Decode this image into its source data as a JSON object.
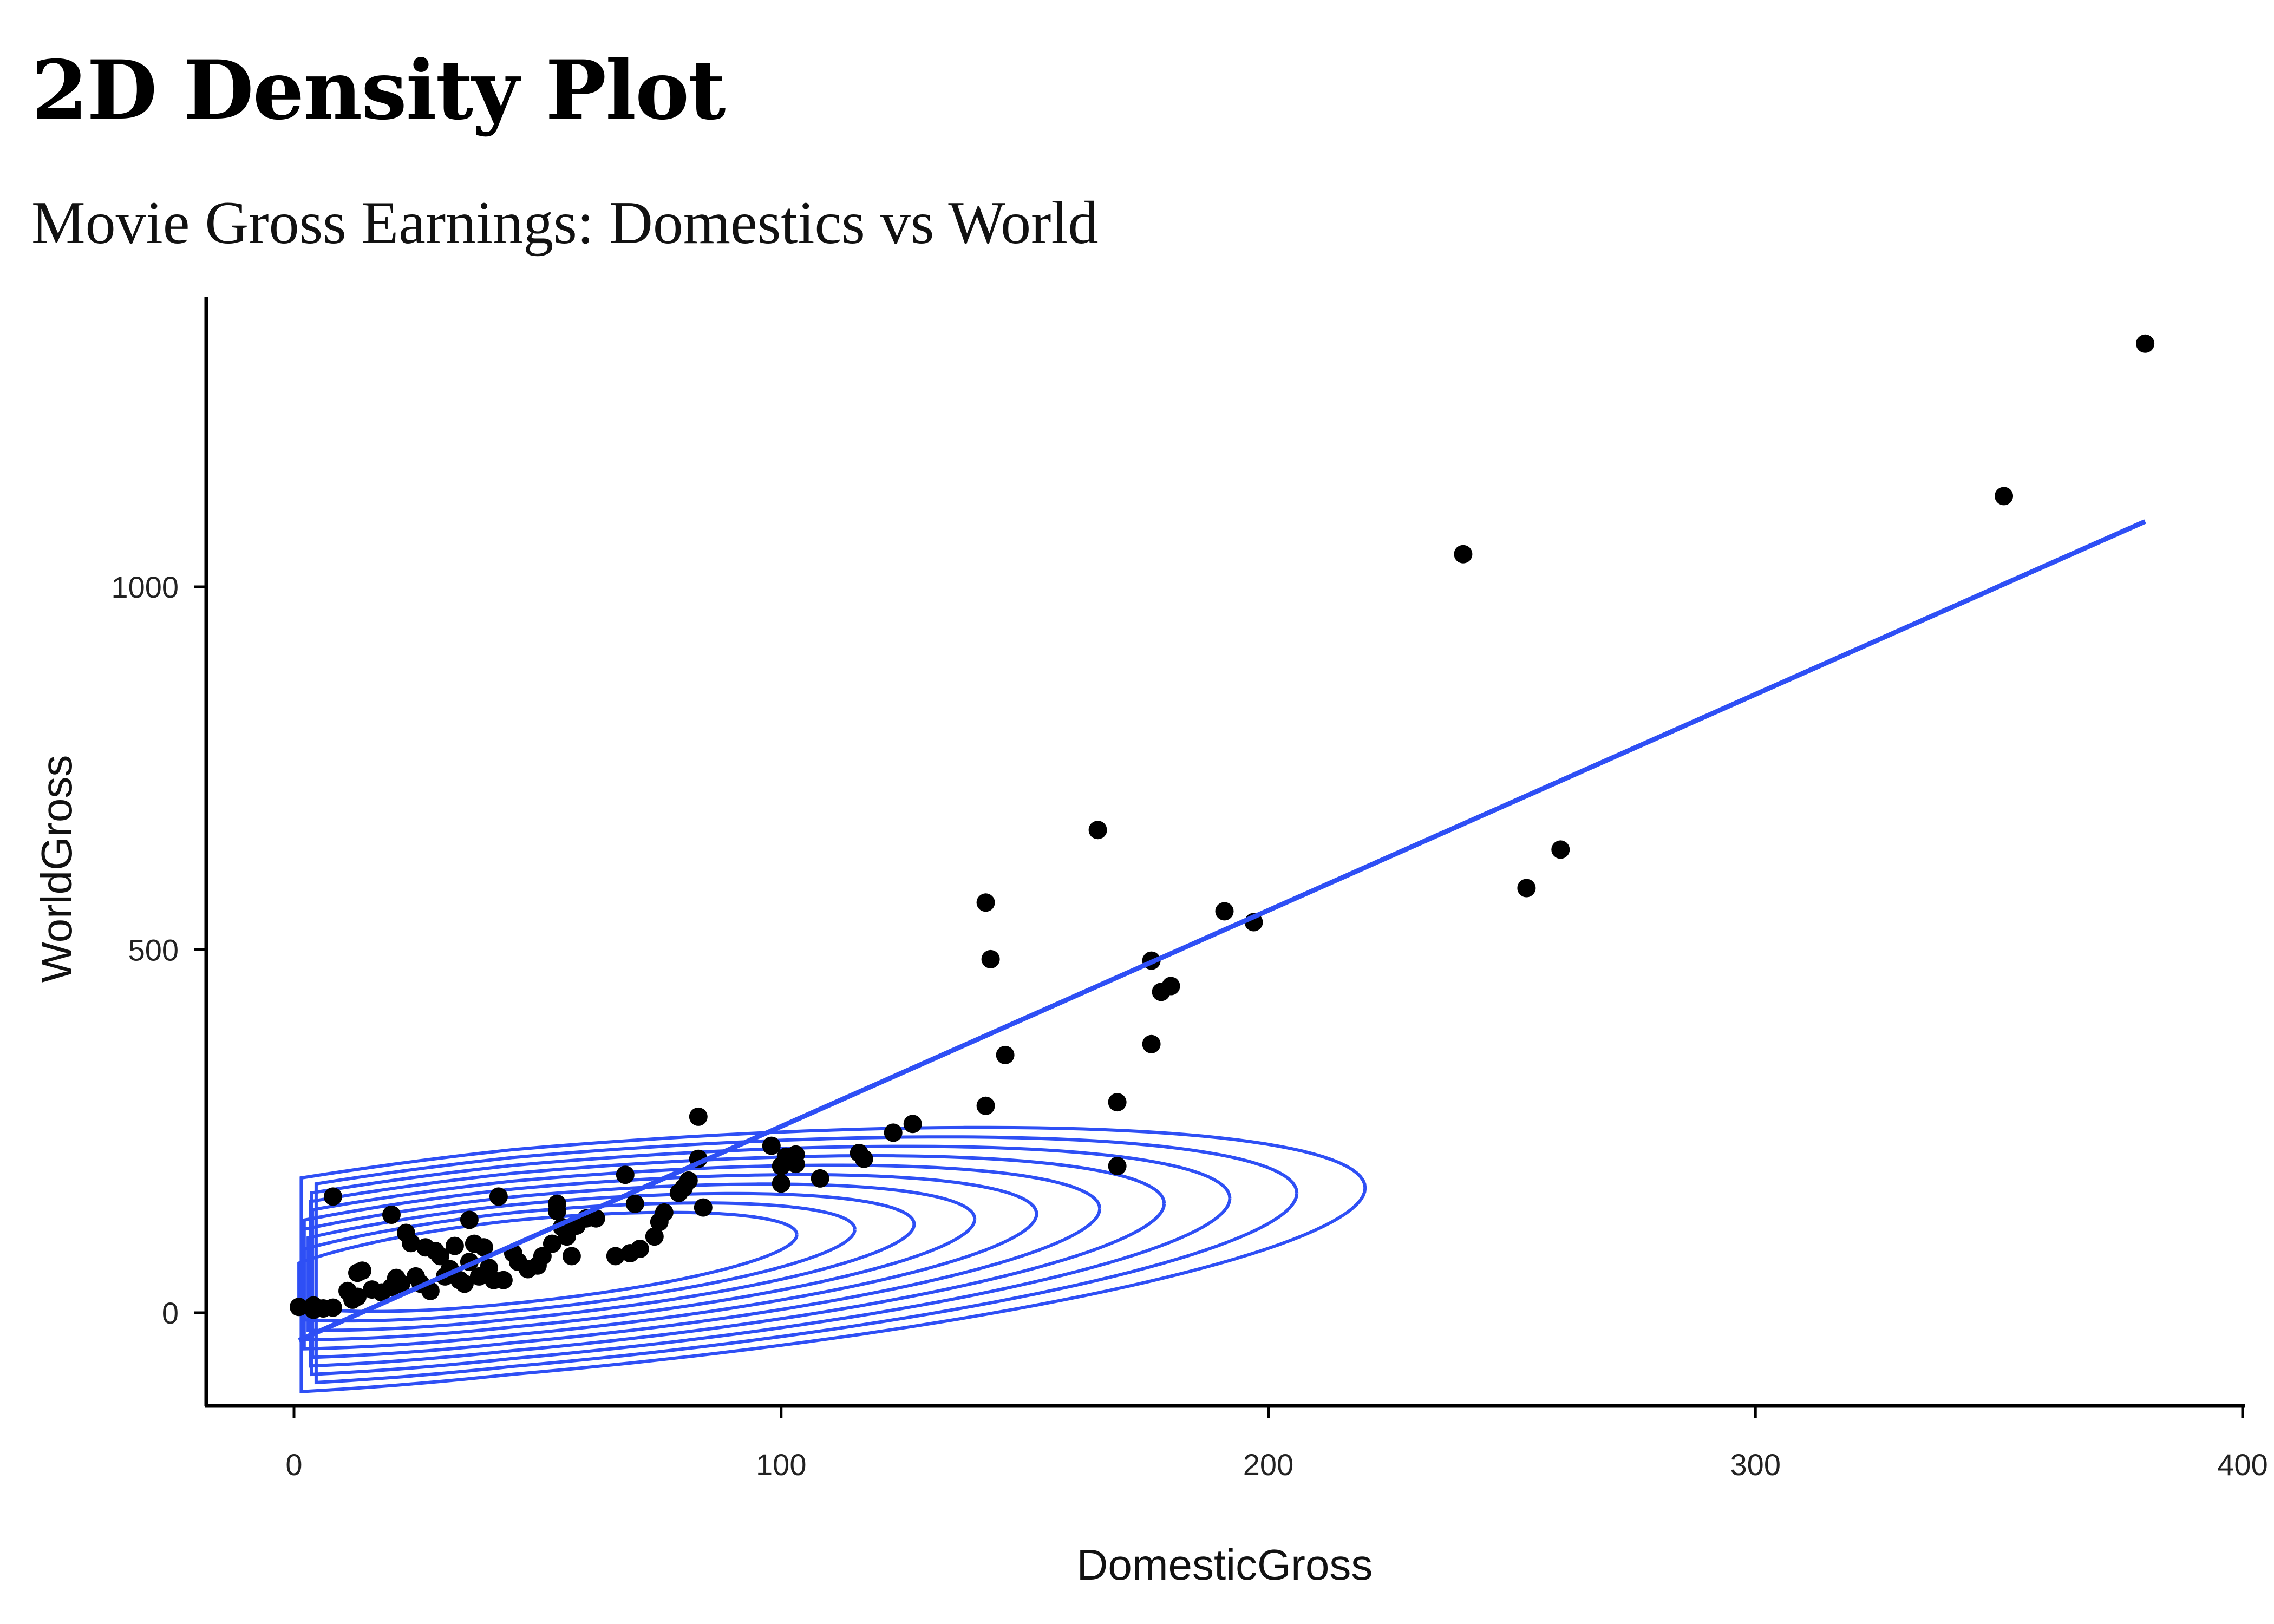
{
  "header": {
    "title": "2D Density Plot",
    "subtitle": "Movie Gross Earnings: Domestics vs World"
  },
  "chart_data": {
    "type": "scatter",
    "title": "2D Density Plot",
    "subtitle": "Movie Gross Earnings: Domestics vs World",
    "xlabel": "DomesticGross",
    "ylabel": "WorldGross",
    "xlim": [
      -18,
      400
    ],
    "ylim": [
      -130,
      1400
    ],
    "x_ticks": [
      0,
      100,
      200,
      300,
      400
    ],
    "y_ticks": [
      0,
      500,
      1000
    ],
    "grid": false,
    "colors": {
      "points": "#000000",
      "fit_line": "#2e4ff5",
      "density_contours": "#2e4ff5"
    },
    "layers": [
      "points",
      "linear-fit",
      "2d-density-contours"
    ],
    "points": [
      [
        1,
        8
      ],
      [
        4,
        10
      ],
      [
        4,
        4
      ],
      [
        6,
        6
      ],
      [
        8,
        7
      ],
      [
        8,
        160
      ],
      [
        11,
        30
      ],
      [
        12,
        18
      ],
      [
        13,
        22
      ],
      [
        13,
        55
      ],
      [
        14,
        58
      ],
      [
        16,
        32
      ],
      [
        18,
        28
      ],
      [
        20,
        35
      ],
      [
        21,
        48
      ],
      [
        20,
        135
      ],
      [
        22,
        40
      ],
      [
        23,
        110
      ],
      [
        24,
        96
      ],
      [
        25,
        50
      ],
      [
        26,
        40
      ],
      [
        27,
        90
      ],
      [
        28,
        30
      ],
      [
        29,
        85
      ],
      [
        30,
        78
      ],
      [
        31,
        50
      ],
      [
        32,
        60
      ],
      [
        33,
        92
      ],
      [
        34,
        45
      ],
      [
        35,
        40
      ],
      [
        36,
        70
      ],
      [
        36,
        128
      ],
      [
        37,
        95
      ],
      [
        38,
        50
      ],
      [
        39,
        90
      ],
      [
        40,
        62
      ],
      [
        41,
        45
      ],
      [
        42,
        160
      ],
      [
        43,
        45
      ],
      [
        45,
        82
      ],
      [
        46,
        70
      ],
      [
        48,
        60
      ],
      [
        50,
        65
      ],
      [
        51,
        78
      ],
      [
        53,
        95
      ],
      [
        54,
        140
      ],
      [
        54,
        150
      ],
      [
        55,
        118
      ],
      [
        56,
        105
      ],
      [
        57,
        78
      ],
      [
        58,
        120
      ],
      [
        60,
        130
      ],
      [
        62,
        130
      ],
      [
        66,
        78
      ],
      [
        68,
        190
      ],
      [
        69,
        82
      ],
      [
        70,
        150
      ],
      [
        71,
        88
      ],
      [
        74,
        105
      ],
      [
        75,
        125
      ],
      [
        76,
        138
      ],
      [
        79,
        165
      ],
      [
        80,
        172
      ],
      [
        81,
        182
      ],
      [
        83,
        270
      ],
      [
        83,
        212
      ],
      [
        84,
        145
      ],
      [
        98,
        230
      ],
      [
        100,
        178
      ],
      [
        100,
        202
      ],
      [
        101,
        215
      ],
      [
        103,
        218
      ],
      [
        103,
        205
      ],
      [
        108,
        185
      ],
      [
        116,
        220
      ],
      [
        117,
        212
      ],
      [
        123,
        248
      ],
      [
        127,
        260
      ],
      [
        142,
        565
      ],
      [
        142,
        285
      ],
      [
        143,
        487
      ],
      [
        146,
        355
      ],
      [
        165,
        665
      ],
      [
        169,
        290
      ],
      [
        169,
        202
      ],
      [
        176,
        485
      ],
      [
        176,
        370
      ],
      [
        178,
        442
      ],
      [
        180,
        450
      ],
      [
        191,
        553
      ],
      [
        197,
        538
      ],
      [
        240,
        1045
      ],
      [
        253,
        585
      ],
      [
        260,
        638
      ],
      [
        351,
        1125
      ],
      [
        380,
        1335
      ]
    ],
    "fit_line": {
      "x": [
        1,
        380
      ],
      "y": [
        -38,
        1090
      ]
    }
  }
}
